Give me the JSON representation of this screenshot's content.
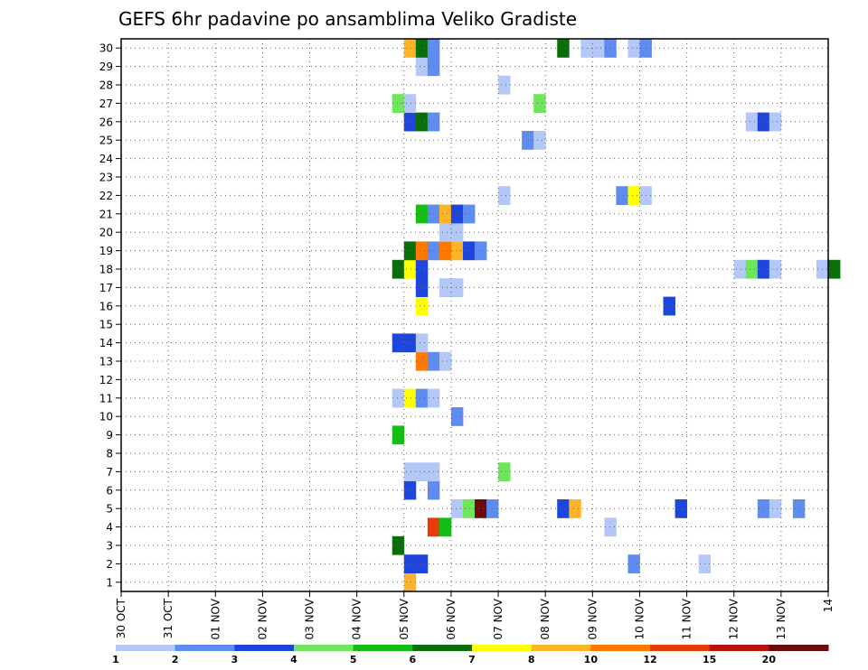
{
  "chart_data": {
    "type": "heatmap",
    "title": "GEFS 6hr padavine po ansamblima Veliko Gradiste",
    "x_ticks": [
      "30 OCT",
      "31 OCT",
      "01 NOV",
      "02 NOV",
      "03 NOV",
      "04 NOV",
      "05 NOV",
      "06 NOV",
      "07 NOV",
      "08 NOV",
      "09 NOV",
      "10 NOV",
      "11 NOV",
      "12 NOV",
      "13 NOV",
      "14"
    ],
    "y_ticks": [
      1,
      2,
      3,
      4,
      5,
      6,
      7,
      8,
      9,
      10,
      11,
      12,
      13,
      14,
      15,
      16,
      17,
      18,
      19,
      20,
      21,
      22,
      23,
      24,
      25,
      26,
      27,
      28,
      29,
      30
    ],
    "x_range_days": [
      0,
      15
    ],
    "y_range": [
      0,
      30
    ],
    "grid": true,
    "colorbar": {
      "boundaries": [
        1,
        2,
        3,
        4,
        5,
        6,
        7,
        8,
        10,
        12,
        15,
        20
      ],
      "boundary_labels": [
        "1",
        "2",
        "3",
        "4",
        "5",
        "6",
        "7",
        "8",
        "10",
        "12",
        "15",
        "20"
      ],
      "colors": [
        "#b4c8f8",
        "#5f8cf0",
        "#1e46dc",
        "#6ee65a",
        "#14be14",
        "#0a6e0a",
        "#ffff00",
        "#ffb428",
        "#ff7800",
        "#e63c0a",
        "#b4140a",
        "#6e0a0a"
      ]
    },
    "cells": [
      {
        "m": 0,
        "s": 24,
        "c": "#ffb428"
      },
      {
        "m": 1,
        "s": 24,
        "c": "#1e46dc"
      },
      {
        "m": 1,
        "s": 25,
        "c": "#1e46dc"
      },
      {
        "m": 1,
        "s": 43,
        "c": "#5f8cf0"
      },
      {
        "m": 1,
        "s": 49,
        "c": "#b4c8f8"
      },
      {
        "m": 2,
        "s": 23,
        "c": "#0a6e0a"
      },
      {
        "m": 3,
        "s": 26,
        "c": "#e63c0a"
      },
      {
        "m": 3,
        "s": 27,
        "c": "#14be14"
      },
      {
        "m": 3,
        "s": 41,
        "c": "#b4c8f8"
      },
      {
        "m": 4,
        "s": 28,
        "c": "#b4c8f8"
      },
      {
        "m": 4,
        "s": 29,
        "c": "#6ee65a"
      },
      {
        "m": 4,
        "s": 30,
        "c": "#6e0a0a"
      },
      {
        "m": 4,
        "s": 31,
        "c": "#5f8cf0"
      },
      {
        "m": 4,
        "s": 37,
        "c": "#1e46dc"
      },
      {
        "m": 4,
        "s": 38,
        "c": "#ffb428"
      },
      {
        "m": 4,
        "s": 47,
        "c": "#1e46dc"
      },
      {
        "m": 4,
        "s": 54,
        "c": "#5f8cf0"
      },
      {
        "m": 4,
        "s": 55,
        "c": "#b4c8f8"
      },
      {
        "m": 4,
        "s": 57,
        "c": "#5f8cf0"
      },
      {
        "m": 5,
        "s": 24,
        "c": "#1e46dc"
      },
      {
        "m": 5,
        "s": 26,
        "c": "#5f8cf0"
      },
      {
        "m": 6,
        "s": 24,
        "c": "#b4c8f8"
      },
      {
        "m": 6,
        "s": 25,
        "c": "#b4c8f8"
      },
      {
        "m": 6,
        "s": 26,
        "c": "#b4c8f8"
      },
      {
        "m": 6,
        "s": 32,
        "c": "#6ee65a"
      },
      {
        "m": 8,
        "s": 23,
        "c": "#14be14"
      },
      {
        "m": 9,
        "s": 28,
        "c": "#5f8cf0"
      },
      {
        "m": 10,
        "s": 23,
        "c": "#b4c8f8"
      },
      {
        "m": 10,
        "s": 24,
        "c": "#ffff00"
      },
      {
        "m": 10,
        "s": 25,
        "c": "#5f8cf0"
      },
      {
        "m": 10,
        "s": 26,
        "c": "#b4c8f8"
      },
      {
        "m": 12,
        "s": 25,
        "c": "#ff7800"
      },
      {
        "m": 12,
        "s": 26,
        "c": "#5f8cf0"
      },
      {
        "m": 12,
        "s": 27,
        "c": "#b4c8f8"
      },
      {
        "m": 13,
        "s": 23,
        "c": "#1e46dc"
      },
      {
        "m": 13,
        "s": 24,
        "c": "#1e46dc"
      },
      {
        "m": 13,
        "s": 25,
        "c": "#b4c8f8"
      },
      {
        "m": 15,
        "s": 25,
        "c": "#ffff00"
      },
      {
        "m": 15,
        "s": 46,
        "c": "#1e46dc"
      },
      {
        "m": 16,
        "s": 25,
        "c": "#1e46dc"
      },
      {
        "m": 16,
        "s": 27,
        "c": "#b4c8f8"
      },
      {
        "m": 16,
        "s": 28,
        "c": "#b4c8f8"
      },
      {
        "m": 17,
        "s": 23,
        "c": "#0a6e0a"
      },
      {
        "m": 17,
        "s": 24,
        "c": "#ffff00"
      },
      {
        "m": 17,
        "s": 25,
        "c": "#1e46dc"
      },
      {
        "m": 17,
        "s": 52,
        "c": "#b4c8f8"
      },
      {
        "m": 17,
        "s": 53,
        "c": "#6ee65a"
      },
      {
        "m": 17,
        "s": 54,
        "c": "#1e46dc"
      },
      {
        "m": 17,
        "s": 55,
        "c": "#b4c8f8"
      },
      {
        "m": 17,
        "s": 59,
        "c": "#b4c8f8"
      },
      {
        "m": 17,
        "s": 60,
        "c": "#0a6e0a"
      },
      {
        "m": 18,
        "s": 24,
        "c": "#0a6e0a"
      },
      {
        "m": 18,
        "s": 25,
        "c": "#ff7800"
      },
      {
        "m": 18,
        "s": 26,
        "c": "#5f8cf0"
      },
      {
        "m": 18,
        "s": 27,
        "c": "#ff7800"
      },
      {
        "m": 18,
        "s": 28,
        "c": "#ffb428"
      },
      {
        "m": 18,
        "s": 29,
        "c": "#1e46dc"
      },
      {
        "m": 18,
        "s": 30,
        "c": "#5f8cf0"
      },
      {
        "m": 19,
        "s": 27,
        "c": "#b4c8f8"
      },
      {
        "m": 19,
        "s": 28,
        "c": "#b4c8f8"
      },
      {
        "m": 20,
        "s": 25,
        "c": "#14be14"
      },
      {
        "m": 20,
        "s": 26,
        "c": "#5f8cf0"
      },
      {
        "m": 20,
        "s": 27,
        "c": "#ffb428"
      },
      {
        "m": 20,
        "s": 28,
        "c": "#1e46dc"
      },
      {
        "m": 20,
        "s": 29,
        "c": "#5f8cf0"
      },
      {
        "m": 21,
        "s": 32,
        "c": "#b4c8f8"
      },
      {
        "m": 21,
        "s": 42,
        "c": "#5f8cf0"
      },
      {
        "m": 21,
        "s": 43,
        "c": "#ffff00"
      },
      {
        "m": 21,
        "s": 44,
        "c": "#b4c8f8"
      },
      {
        "m": 24,
        "s": 34,
        "c": "#5f8cf0"
      },
      {
        "m": 24,
        "s": 35,
        "c": "#b4c8f8"
      },
      {
        "m": 25,
        "s": 24,
        "c": "#1e46dc"
      },
      {
        "m": 25,
        "s": 25,
        "c": "#0a6e0a"
      },
      {
        "m": 25,
        "s": 26,
        "c": "#5f8cf0"
      },
      {
        "m": 25,
        "s": 53,
        "c": "#b4c8f8"
      },
      {
        "m": 25,
        "s": 54,
        "c": "#1e46dc"
      },
      {
        "m": 25,
        "s": 55,
        "c": "#b4c8f8"
      },
      {
        "m": 26,
        "s": 23,
        "c": "#6ee65a"
      },
      {
        "m": 26,
        "s": 24,
        "c": "#b4c8f8"
      },
      {
        "m": 26,
        "s": 35,
        "c": "#6ee65a"
      },
      {
        "m": 27,
        "s": 32,
        "c": "#b4c8f8"
      },
      {
        "m": 28,
        "s": 25,
        "c": "#b4c8f8"
      },
      {
        "m": 28,
        "s": 26,
        "c": "#5f8cf0"
      },
      {
        "m": 29,
        "s": 24,
        "c": "#ffb428"
      },
      {
        "m": 29,
        "s": 25,
        "c": "#0a6e0a"
      },
      {
        "m": 29,
        "s": 26,
        "c": "#5f8cf0"
      },
      {
        "m": 29,
        "s": 37,
        "c": "#0a6e0a"
      },
      {
        "m": 29,
        "s": 39,
        "c": "#b4c8f8"
      },
      {
        "m": 29,
        "s": 40,
        "c": "#b4c8f8"
      },
      {
        "m": 29,
        "s": 41,
        "c": "#5f8cf0"
      },
      {
        "m": 29,
        "s": 43,
        "c": "#b4c8f8"
      },
      {
        "m": 29,
        "s": 44,
        "c": "#5f8cf0"
      }
    ]
  }
}
